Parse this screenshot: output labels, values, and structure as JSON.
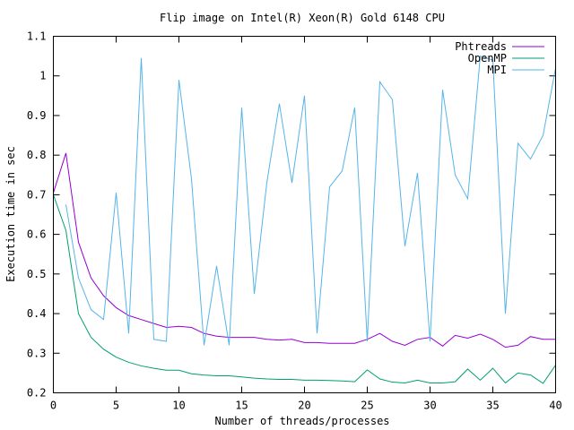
{
  "chart_data": {
    "type": "line",
    "title": "Flip image on Intel(R) Xeon(R) Gold 6148 CPU",
    "xlabel": "Number of threads/processes",
    "ylabel": "Execution time in sec",
    "xlim": [
      0,
      40
    ],
    "ylim": [
      0.2,
      1.1
    ],
    "x_ticks": [
      0,
      5,
      10,
      15,
      20,
      25,
      30,
      35,
      40
    ],
    "y_ticks": [
      0.2,
      0.3,
      0.4,
      0.5,
      0.6,
      0.7,
      0.8,
      0.9,
      1,
      1.1
    ],
    "x_tick_labels": [
      "0",
      "5",
      "10",
      "15",
      "20",
      "25",
      "30",
      "35",
      "40"
    ],
    "y_tick_labels": [
      "0.2",
      "0.3",
      "0.4",
      "0.5",
      "0.6",
      "0.7",
      "0.8",
      "0.9",
      "1",
      "1.1"
    ],
    "grid": false,
    "legend_position": "top-right",
    "series": [
      {
        "name": "Phtreads",
        "color": "#9400d3",
        "x": [
          0,
          1,
          2,
          3,
          4,
          5,
          6,
          7,
          8,
          9,
          10,
          11,
          12,
          13,
          14,
          15,
          16,
          17,
          18,
          19,
          20,
          21,
          22,
          23,
          24,
          25,
          26,
          27,
          28,
          29,
          30,
          31,
          32,
          33,
          34,
          35,
          36,
          37,
          38,
          39,
          40
        ],
        "values": [
          0.705,
          0.805,
          0.58,
          0.49,
          0.445,
          0.415,
          0.395,
          0.385,
          0.375,
          0.365,
          0.368,
          0.365,
          0.35,
          0.343,
          0.34,
          0.34,
          0.34,
          0.335,
          0.333,
          0.335,
          0.327,
          0.327,
          0.325,
          0.325,
          0.325,
          0.335,
          0.35,
          0.33,
          0.32,
          0.335,
          0.34,
          0.318,
          0.345,
          0.338,
          0.348,
          0.335,
          0.315,
          0.32,
          0.342,
          0.335,
          0.335
        ]
      },
      {
        "name": "OpenMP",
        "color": "#009e73",
        "x": [
          0,
          1,
          2,
          3,
          4,
          5,
          6,
          7,
          8,
          9,
          10,
          11,
          12,
          13,
          14,
          15,
          16,
          17,
          18,
          19,
          20,
          21,
          22,
          23,
          24,
          25,
          26,
          27,
          28,
          29,
          30,
          31,
          32,
          33,
          34,
          35,
          36,
          37,
          38,
          39,
          40
        ],
        "values": [
          0.7,
          0.61,
          0.4,
          0.34,
          0.31,
          0.29,
          0.277,
          0.268,
          0.262,
          0.257,
          0.257,
          0.248,
          0.245,
          0.243,
          0.243,
          0.24,
          0.237,
          0.235,
          0.234,
          0.234,
          0.232,
          0.232,
          0.231,
          0.23,
          0.228,
          0.258,
          0.235,
          0.227,
          0.225,
          0.232,
          0.225,
          0.225,
          0.228,
          0.26,
          0.232,
          0.262,
          0.225,
          0.25,
          0.245,
          0.224,
          0.27
        ]
      },
      {
        "name": "MPI",
        "color": "#56b4e9",
        "x": [
          1,
          2,
          3,
          4,
          5,
          6,
          7,
          8,
          9,
          10,
          11,
          12,
          13,
          14,
          15,
          16,
          17,
          18,
          19,
          20,
          21,
          22,
          23,
          24,
          25,
          26,
          27,
          28,
          29,
          30,
          31,
          32,
          33,
          34,
          35,
          36,
          37,
          38,
          39,
          40
        ],
        "values": [
          0.675,
          0.49,
          0.41,
          0.385,
          0.705,
          0.35,
          1.045,
          0.335,
          0.33,
          0.99,
          0.74,
          0.32,
          0.52,
          0.32,
          0.92,
          0.45,
          0.73,
          0.93,
          0.73,
          0.95,
          0.35,
          0.72,
          0.76,
          0.92,
          0.33,
          0.985,
          0.94,
          0.57,
          0.755,
          0.33,
          0.965,
          0.75,
          0.69,
          1.05,
          1.04,
          0.4,
          0.83,
          0.79,
          0.85,
          1.02
        ]
      }
    ]
  }
}
